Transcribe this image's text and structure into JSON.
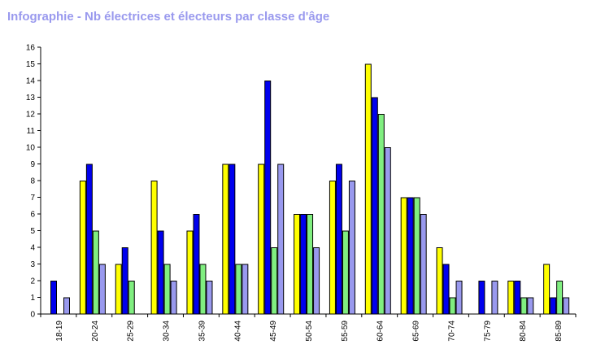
{
  "title": "Infographie - Nb électrices et électeurs par classe d'âge",
  "chart_data": {
    "type": "bar",
    "categories": [
      "18-19",
      "20-24",
      "25-29",
      "30-34",
      "35-39",
      "40-44",
      "45-49",
      "50-54",
      "55-59",
      "60-64",
      "65-69",
      "70-74",
      "75-79",
      "80-84",
      "85-89"
    ],
    "series": [
      {
        "color": "#ffff00",
        "values": [
          0,
          8,
          3,
          8,
          5,
          9,
          9,
          6,
          8,
          15,
          7,
          4,
          0,
          2,
          3
        ]
      },
      {
        "color": "#0000ee",
        "values": [
          2,
          9,
          4,
          5,
          6,
          9,
          14,
          6,
          9,
          13,
          7,
          3,
          2,
          2,
          1
        ]
      },
      {
        "color": "#80ee80",
        "values": [
          0,
          5,
          2,
          3,
          3,
          3,
          4,
          6,
          5,
          12,
          7,
          1,
          0,
          1,
          2
        ]
      },
      {
        "color": "#9999ee",
        "values": [
          1,
          3,
          0,
          2,
          2,
          3,
          9,
          4,
          8,
          10,
          6,
          2,
          2,
          1,
          1
        ]
      }
    ],
    "yticks": [
      "0",
      "1",
      "2",
      "3",
      "4",
      "5",
      "6",
      "7",
      "8",
      "9",
      "10",
      "11",
      "12",
      "13",
      "14",
      "15",
      "16"
    ],
    "ylim": [
      0,
      16
    ],
    "grid": false
  }
}
